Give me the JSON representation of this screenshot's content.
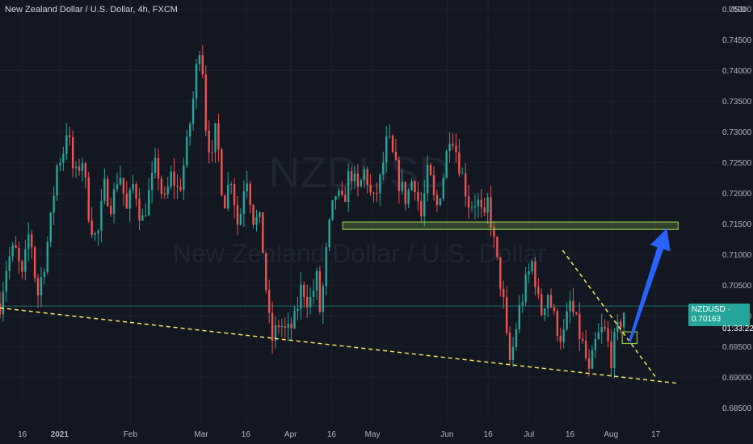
{
  "header": {
    "title": "New Zealand Dollar / U.S. Dollar, 4h, FXCM"
  },
  "watermark": {
    "symbol": "NZDUSD",
    "name": "New Zealand Dollar / U.S. Dollar"
  },
  "price_label": {
    "symbol": "NZDUSD",
    "price": "0.70163",
    "countdown": "01:33:22"
  },
  "colors": {
    "background": "#131722",
    "up": "#26a69a",
    "down": "#ef5350",
    "trendline": "#f5e663",
    "zone": "#8bc34a",
    "arrow": "#2962ff",
    "badge": "#26a69a"
  },
  "chart_data": {
    "type": "candlestick",
    "title": "New Zealand Dollar / U.S. Dollar, 4h, FXCM",
    "y_unit": "USD",
    "ylim": [
      0.6828,
      0.7515
    ],
    "xlim": [
      0,
      193
    ],
    "x_unit": "days from start of visible range",
    "yticks": [
      0.75,
      0.745,
      0.74,
      0.735,
      0.73,
      0.725,
      0.72,
      0.715,
      0.71,
      0.705,
      0.7,
      0.695,
      0.69,
      0.685
    ],
    "ytick_labels": [
      "0.75000",
      "0.74500",
      "0.74000",
      "0.73500",
      "0.73000",
      "0.72500",
      "0.72000",
      "0.71500",
      "0.71000",
      "0.70500",
      "0.70000",
      "0.69500",
      "0.69000",
      "0.68500"
    ],
    "xticks": [
      {
        "x": 6,
        "label": "16"
      },
      {
        "x": 16,
        "label": "2021",
        "bold": true
      },
      {
        "x": 35,
        "label": "Feb"
      },
      {
        "x": 54,
        "label": "Mar"
      },
      {
        "x": 66,
        "label": "16"
      },
      {
        "x": 78,
        "label": "Apr"
      },
      {
        "x": 89,
        "label": "16"
      },
      {
        "x": 100,
        "label": "May"
      },
      {
        "x": 120,
        "label": "Jun"
      },
      {
        "x": 131,
        "label": "16"
      },
      {
        "x": 142,
        "label": "Jul"
      },
      {
        "x": 153,
        "label": "16"
      },
      {
        "x": 164,
        "label": "Aug"
      },
      {
        "x": 176,
        "label": "17"
      }
    ],
    "price_path": [
      [
        0,
        0.702
      ],
      [
        2,
        0.709
      ],
      [
        4,
        0.711
      ],
      [
        6,
        0.706
      ],
      [
        8,
        0.7145
      ],
      [
        10,
        0.703
      ],
      [
        12,
        0.709
      ],
      [
        14,
        0.717
      ],
      [
        15,
        0.724
      ],
      [
        17,
        0.727
      ],
      [
        18,
        0.731
      ],
      [
        20,
        0.722
      ],
      [
        22,
        0.726
      ],
      [
        24,
        0.716
      ],
      [
        26,
        0.712
      ],
      [
        28,
        0.721
      ],
      [
        30,
        0.718
      ],
      [
        32,
        0.724
      ],
      [
        34,
        0.717
      ],
      [
        36,
        0.722
      ],
      [
        38,
        0.715
      ],
      [
        40,
        0.72
      ],
      [
        42,
        0.725
      ],
      [
        44,
        0.718
      ],
      [
        46,
        0.723
      ],
      [
        48,
        0.72
      ],
      [
        50,
        0.727
      ],
      [
        52,
        0.736
      ],
      [
        53,
        0.742
      ],
      [
        54,
        0.746
      ],
      [
        55,
        0.732
      ],
      [
        57,
        0.725
      ],
      [
        58,
        0.731
      ],
      [
        60,
        0.718
      ],
      [
        62,
        0.723
      ],
      [
        64,
        0.714
      ],
      [
        66,
        0.724
      ],
      [
        68,
        0.716
      ],
      [
        70,
        0.715
      ],
      [
        72,
        0.7
      ],
      [
        73,
        0.696
      ],
      [
        75,
        0.699
      ],
      [
        77,
        0.697
      ],
      [
        79,
        0.699
      ],
      [
        81,
        0.705
      ],
      [
        83,
        0.702
      ],
      [
        85,
        0.706
      ],
      [
        86,
        0.7
      ],
      [
        88,
        0.713
      ],
      [
        90,
        0.72
      ],
      [
        92,
        0.718
      ],
      [
        94,
        0.724
      ],
      [
        96,
        0.72
      ],
      [
        98,
        0.724
      ],
      [
        100,
        0.718
      ],
      [
        102,
        0.722
      ],
      [
        104,
        0.729
      ],
      [
        105,
        0.727
      ],
      [
        107,
        0.722
      ],
      [
        109,
        0.719
      ],
      [
        111,
        0.723
      ],
      [
        113,
        0.716
      ],
      [
        115,
        0.724
      ],
      [
        117,
        0.717
      ],
      [
        119,
        0.723
      ],
      [
        121,
        0.731
      ],
      [
        122,
        0.728
      ],
      [
        124,
        0.723
      ],
      [
        126,
        0.718
      ],
      [
        128,
        0.719
      ],
      [
        130,
        0.715
      ],
      [
        131,
        0.719
      ],
      [
        133,
        0.71
      ],
      [
        135,
        0.703
      ],
      [
        136,
        0.696
      ],
      [
        137,
        0.692
      ],
      [
        139,
        0.7
      ],
      [
        141,
        0.705
      ],
      [
        143,
        0.709
      ],
      [
        145,
        0.7
      ],
      [
        147,
        0.704
      ],
      [
        149,
        0.699
      ],
      [
        151,
        0.696
      ],
      [
        153,
        0.702
      ],
      [
        155,
        0.698
      ],
      [
        157,
        0.694
      ],
      [
        158,
        0.69
      ],
      [
        160,
        0.696
      ],
      [
        162,
        0.698
      ],
      [
        163,
        0.696
      ],
      [
        164,
        0.693
      ],
      [
        165,
        0.696
      ],
      [
        167,
        0.7
      ],
      [
        168,
        0.7016
      ]
    ],
    "annotations": {
      "support_zone": {
        "x0": 92,
        "x1": 182,
        "y0": 0.7153,
        "y1": 0.7141
      },
      "lower_trendline": {
        "points": [
          [
            0,
            0.7013
          ],
          [
            182,
            0.689
          ]
        ]
      },
      "upper_trendline": {
        "points": [
          [
            151,
            0.7107
          ],
          [
            176,
            0.69
          ]
        ]
      },
      "small_box": {
        "x0": 167,
        "x1": 171,
        "y0": 0.6974,
        "y1": 0.6955
      },
      "arrow": {
        "from": [
          169,
          0.6958
        ],
        "to": [
          179,
          0.7143
        ]
      },
      "last_price_line": 0.7016
    }
  }
}
